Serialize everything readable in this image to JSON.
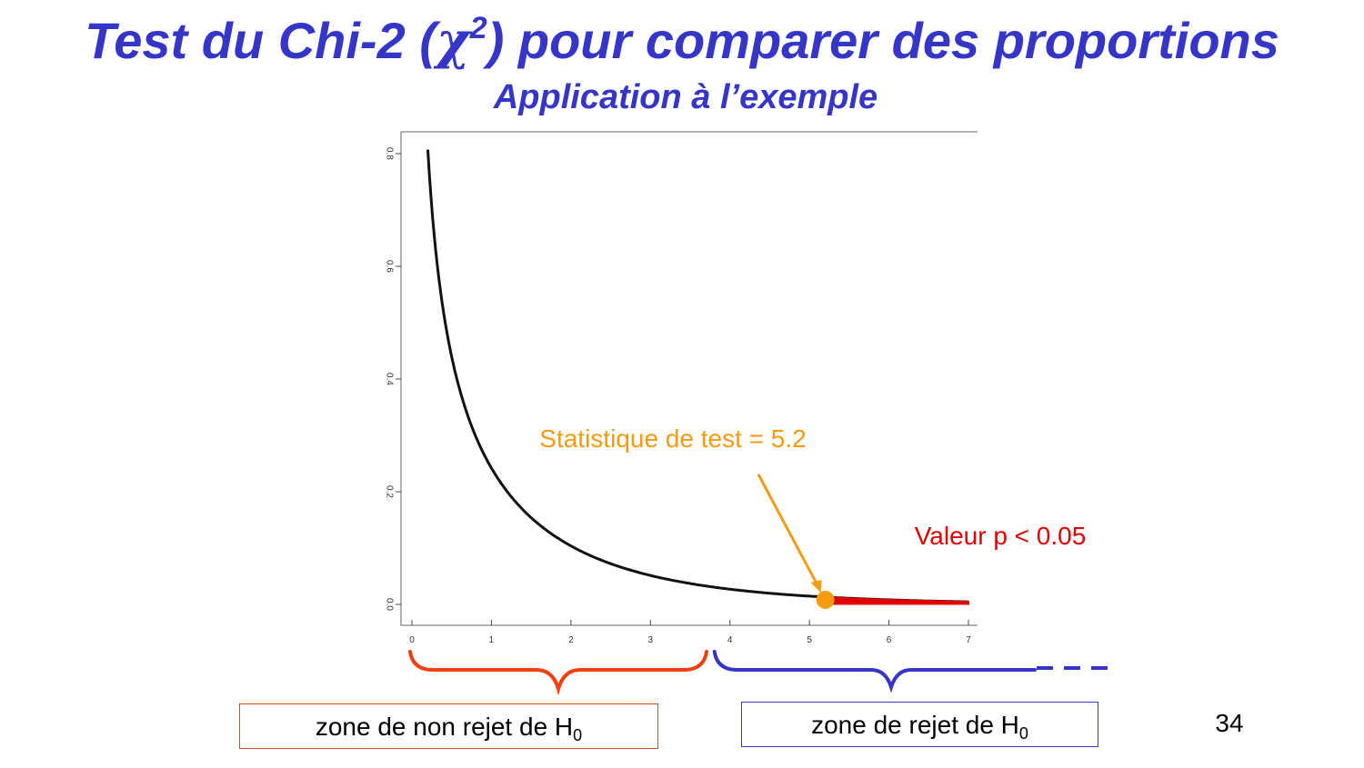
{
  "slide": {
    "title_prefix": "Test du Chi-2 (",
    "title_symbol": "χ",
    "title_superscript": "2",
    "title_suffix": ") pour comparer des proportions",
    "subtitle": "Application à l’exemple",
    "page_number": "34",
    "colors": {
      "title": "#3535c8",
      "curve": "#111111",
      "rejection_region": "#e00000",
      "statistic": "#f39b13",
      "non_rejection_brace": "#f04010",
      "rejection_brace": "#3535c8"
    }
  },
  "zones": {
    "non_rejection_label": "zone de non rejet de H",
    "non_rejection_sub": "0",
    "rejection_label": "zone de rejet de H",
    "rejection_sub": "0",
    "critical_value": 3.84
  },
  "chart_data": {
    "type": "line",
    "distribution": "chi-squared, df = 1 (density)",
    "x_range": [
      0.2,
      7
    ],
    "xlim": [
      0,
      7
    ],
    "ylim": [
      0,
      0.8
    ],
    "x_ticks": [
      "0",
      "1",
      "2",
      "3",
      "4",
      "5",
      "6",
      "7"
    ],
    "y_ticks": [
      "0.0",
      "0.2",
      "0.4",
      "0.6",
      "0.8"
    ],
    "grid": false,
    "shaded_region": {
      "from": 5.2,
      "to": 7,
      "color": "#e00000"
    },
    "test_statistic": {
      "value": 5.2,
      "label": "Statistique de test = 5.2"
    },
    "p_value_label": "Valeur p < 0.05"
  }
}
